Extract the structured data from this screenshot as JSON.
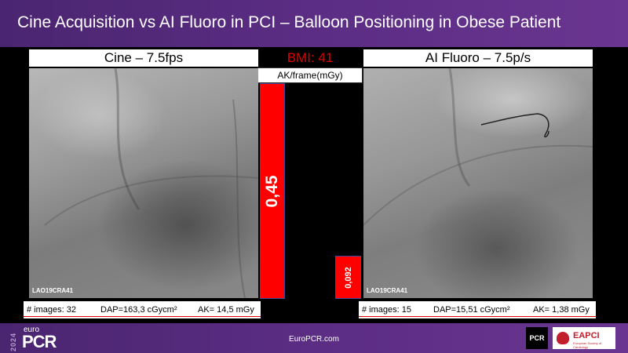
{
  "header": {
    "title": "Cine Acquisition vs AI Fluoro in PCI – Balloon Positioning in Obese Patient"
  },
  "left_panel": {
    "title": "Cine – 7.5fps",
    "view_label": "LAO19CRA41",
    "stats": {
      "images": "# images: 32",
      "dap": "DAP=163,3 cGycm²",
      "ak": "AK= 14,5 mGy"
    }
  },
  "right_panel": {
    "title": "AI Fluoro – 7.5p/s",
    "view_label": "LAO19CRA41",
    "stats": {
      "images": "# images: 15",
      "dap": "DAP=15,51 cGycm²",
      "ak": "AK= 1,38 mGy"
    }
  },
  "center": {
    "bmi": "BMI: 41",
    "ak_label": "AK/frame(mGy)",
    "bar_cine": "0,45",
    "bar_ai": "0,092"
  },
  "footer": {
    "year": "2024",
    "logo_small": "euro",
    "logo_big": "PCR",
    "url": "EuroPCR.com",
    "pcr_badge": "PCR",
    "eapci": "EAPCI",
    "eapci_sub": "European Society of Cardiology"
  },
  "colors": {
    "accent": "#5b2d84",
    "bar": "#ff0000",
    "label_red": "#e00000"
  }
}
